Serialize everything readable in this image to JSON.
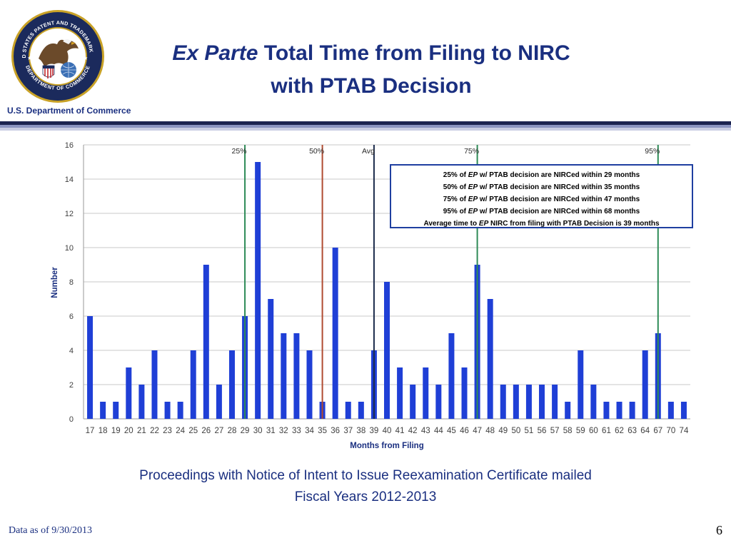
{
  "header": {
    "title_italic": "Ex Parte",
    "title_rest": " Total Time from Filing to NIRC",
    "title_line2": "with PTAB Decision",
    "department": "U.S. Department of Commerce",
    "seal_text_top": "UNITED STATES PATENT AND TRADEMARK OFFICE",
    "seal_text_bottom": "DEPARTMENT OF COMMERCE"
  },
  "chart_data": {
    "type": "bar",
    "xlabel": "Months from Filing",
    "ylabel": "Number",
    "ylim": [
      0,
      16
    ],
    "yticks": [
      0,
      2,
      4,
      6,
      8,
      10,
      12,
      14,
      16
    ],
    "grid": true,
    "categories": [
      "17",
      "18",
      "19",
      "20",
      "21",
      "22",
      "23",
      "24",
      "25",
      "26",
      "27",
      "28",
      "29",
      "30",
      "31",
      "32",
      "33",
      "34",
      "35",
      "36",
      "37",
      "38",
      "39",
      "40",
      "41",
      "42",
      "43",
      "44",
      "45",
      "46",
      "47",
      "48",
      "49",
      "50",
      "51",
      "56",
      "57",
      "58",
      "59",
      "60",
      "61",
      "62",
      "63",
      "64",
      "67",
      "70",
      "74"
    ],
    "values": [
      6,
      1,
      1,
      3,
      2,
      4,
      1,
      1,
      4,
      9,
      2,
      4,
      6,
      15,
      7,
      5,
      5,
      4,
      1,
      10,
      1,
      1,
      4,
      8,
      3,
      2,
      3,
      2,
      5,
      3,
      9,
      7,
      2,
      2,
      2,
      2,
      2,
      1,
      4,
      2,
      1,
      1,
      1,
      4,
      5,
      1,
      1
    ],
    "bar_color": "#1f3fd6",
    "markers": [
      {
        "label": "25%",
        "category": "29",
        "color": "#2e8b57"
      },
      {
        "label": "50%",
        "category": "35",
        "color": "#b04a30"
      },
      {
        "label": "Avg",
        "category": "39",
        "color": "#1b2a4a"
      },
      {
        "label": "75%",
        "category": "47",
        "color": "#2e8b57"
      },
      {
        "label": "95%",
        "category": "67",
        "color": "#2e8b57"
      }
    ],
    "annotation": [
      {
        "pre": "25% of ",
        "ep": "EP",
        "post": " w/ PTAB decision are NIRCed within 29 months"
      },
      {
        "pre": "50% of ",
        "ep": "EP",
        "post": " w/ PTAB decision are NIRCed within 35 months"
      },
      {
        "pre": "75% of ",
        "ep": "EP",
        "post": " w/ PTAB decision are NIRCed within 47 months"
      },
      {
        "pre": "95% of ",
        "ep": "EP",
        "post": " w/ PTAB decision are NIRCed within 68 months"
      },
      {
        "pre": "Average time to ",
        "ep": "EP",
        "post": " NIRC from filing with PTAB Decision is 39 months"
      }
    ]
  },
  "caption": {
    "line1": "Proceedings with Notice of Intent to Issue Reexamination Certificate mailed",
    "line2": "Fiscal Years 2012-2013"
  },
  "footer": {
    "data_as_of": "Data as of 9/30/2013",
    "page_number": "6"
  },
  "colors": {
    "title": "#1a2f80",
    "band": "#1b2350"
  }
}
